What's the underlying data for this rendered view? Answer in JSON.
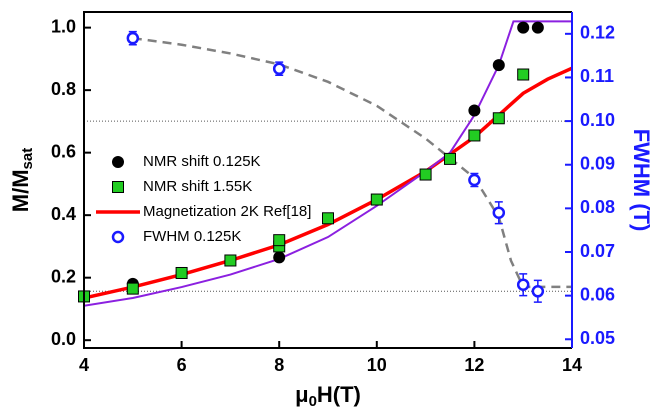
{
  "chart_data": {
    "type": "scatter",
    "x_label": [
      "μ",
      "0",
      "H(T)"
    ],
    "y_label": [
      "M/M",
      "sat"
    ],
    "y2_label": "FWHM (T)",
    "y2_color": "#1a1aff",
    "xlim": [
      4,
      14
    ],
    "xticks": [
      4,
      6,
      8,
      10,
      12,
      14
    ],
    "ylim": [
      -0.025,
      1.05
    ],
    "yticks": [
      {
        "value": 0,
        "label": "0.0"
      },
      0.2,
      0.4,
      0.6,
      0.8,
      {
        "value": 1,
        "label": "1.0"
      }
    ],
    "y2lim": [
      0.048,
      0.125
    ],
    "y2ticks": [
      0.05,
      0.06,
      0.07,
      0.08,
      0.09,
      {
        "value": 0.1,
        "label": "0.10"
      },
      0.11,
      0.12
    ],
    "legend": "left",
    "reference_lines": {
      "axis": "y2",
      "values": [
        0.1,
        0.061
      ]
    },
    "series": [
      {
        "name": "NMR shift 0.125K",
        "color": "#000000",
        "marker": "circle",
        "x": [
          4,
          5,
          6,
          8,
          12,
          12.5,
          13,
          13.3
        ],
        "values": [
          0.14,
          0.18,
          0.215,
          0.265,
          0.735,
          0.88,
          1.0,
          1.0
        ]
      },
      {
        "name": "NMR shift 1.55K",
        "color": "#22cc22",
        "marker": "square",
        "x": [
          4,
          5,
          6,
          7,
          8,
          8,
          9,
          10,
          11,
          11.5,
          12,
          12.5,
          13
        ],
        "values": [
          0.14,
          0.165,
          0.215,
          0.255,
          0.3,
          0.32,
          0.39,
          0.45,
          0.53,
          0.58,
          0.655,
          0.71,
          0.85
        ]
      },
      {
        "name": "Magnetization 2K Ref[18]",
        "color": "#ff0000",
        "line": "solid",
        "width": 3.5,
        "x": [
          4,
          5,
          6,
          7,
          8,
          9,
          10,
          11,
          12,
          12.5,
          13,
          13.5,
          14
        ],
        "values": [
          0.135,
          0.17,
          0.21,
          0.255,
          0.305,
          0.37,
          0.45,
          0.54,
          0.65,
          0.72,
          0.79,
          0.835,
          0.87
        ]
      },
      {
        "color": "#8b20e0",
        "line": "solid",
        "width": 2,
        "x": [
          4,
          5,
          6,
          7,
          8,
          9,
          10,
          11,
          11.5,
          12,
          12.5,
          12.8,
          14
        ],
        "values": [
          0.11,
          0.135,
          0.17,
          0.21,
          0.26,
          0.33,
          0.43,
          0.54,
          0.6,
          0.72,
          0.88,
          1.02,
          1.02
        ]
      },
      {
        "name": "FWHM 0.125K",
        "color": "#1a1aff",
        "marker": "open-circle",
        "axis": "y2",
        "x": [
          5,
          8,
          12,
          12.5,
          13,
          13.3
        ],
        "values": [
          0.119,
          0.112,
          0.0865,
          0.079,
          0.0625,
          0.061
        ],
        "errors": [
          0.0015,
          0.0015,
          0.0015,
          0.0025,
          0.0025,
          0.0025
        ]
      },
      {
        "color": "#808080",
        "line": "dashed",
        "width": 2.5,
        "axis": "y2",
        "x": [
          5,
          6,
          7,
          8,
          9,
          10,
          11,
          12,
          12.5,
          12.75,
          13,
          13.5,
          14
        ],
        "values": [
          0.119,
          0.1175,
          0.1155,
          0.113,
          0.109,
          0.1035,
          0.096,
          0.087,
          0.078,
          0.068,
          0.062,
          0.062,
          0.062
        ]
      }
    ]
  }
}
